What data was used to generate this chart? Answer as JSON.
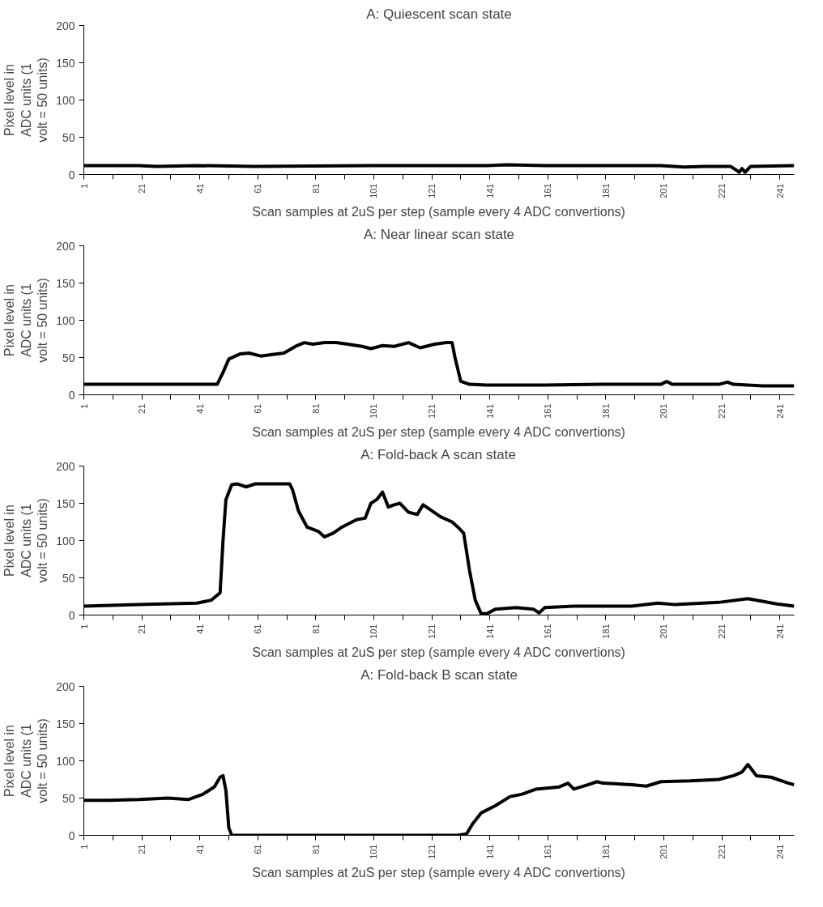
{
  "chart_data": [
    {
      "type": "line",
      "title": "A: Quiescent scan state",
      "xlabel": "Scan samples at 2uS per step (sample every 4 ADC convertions)",
      "ylabel": "Pixel level in ADC units (1 volt = 50 units)",
      "xlim": [
        1,
        246
      ],
      "ylim": [
        0,
        200
      ],
      "yticks": [
        0,
        50,
        100,
        150,
        200
      ],
      "xticks": [
        1,
        {
          "value": 11,
          "label": null
        },
        21,
        {
          "value": 31,
          "label": null
        },
        41,
        {
          "value": 51,
          "label": null
        },
        61,
        {
          "value": 71,
          "label": null
        },
        81,
        {
          "value": 91,
          "label": null
        },
        101,
        {
          "value": 111,
          "label": null
        },
        121,
        {
          "value": 131,
          "label": null
        },
        141,
        {
          "value": 151,
          "label": null
        },
        161,
        {
          "value": 171,
          "label": null
        },
        181,
        {
          "value": 191,
          "label": null
        },
        201,
        {
          "value": 211,
          "label": null
        },
        221,
        {
          "value": 231,
          "label": null
        },
        241
      ],
      "grid": false,
      "marker": "none",
      "line_style": "solid",
      "series": [
        {
          "color": "#000000",
          "x": [
            1,
            20,
            26,
            40,
            60,
            100,
            140,
            147,
            160,
            200,
            208,
            215,
            224,
            226,
            227,
            228,
            229,
            231,
            246
          ],
          "values": [
            12,
            12,
            11,
            12,
            11,
            12,
            12,
            13,
            12,
            12,
            10,
            11,
            11,
            6,
            3,
            8,
            3,
            11,
            12
          ]
        }
      ]
    },
    {
      "type": "line",
      "title": "A: Near linear scan state",
      "xlabel": "Scan samples at 2uS per step (sample every 4 ADC convertions)",
      "ylabel": "Pixel level in ADC units (1 volt = 50 units)",
      "xlim": [
        1,
        246
      ],
      "ylim": [
        0,
        200
      ],
      "yticks": [
        0,
        50,
        100,
        150,
        200
      ],
      "xticks": [
        1,
        {
          "value": 11,
          "label": null
        },
        21,
        {
          "value": 31,
          "label": null
        },
        41,
        {
          "value": 51,
          "label": null
        },
        61,
        {
          "value": 71,
          "label": null
        },
        81,
        {
          "value": 91,
          "label": null
        },
        101,
        {
          "value": 111,
          "label": null
        },
        121,
        {
          "value": 131,
          "label": null
        },
        141,
        {
          "value": 151,
          "label": null
        },
        161,
        {
          "value": 171,
          "label": null
        },
        181,
        {
          "value": 191,
          "label": null
        },
        201,
        {
          "value": 211,
          "label": null
        },
        221,
        {
          "value": 231,
          "label": null
        },
        241
      ],
      "grid": false,
      "marker": "none",
      "line_style": "solid",
      "series": [
        {
          "color": "#000000",
          "x": [
            1,
            20,
            40,
            47,
            49,
            51,
            55,
            58,
            62,
            66,
            70,
            74,
            77,
            80,
            84,
            88,
            92,
            97,
            100,
            104,
            108,
            113,
            117,
            122,
            126,
            128,
            129,
            131,
            134,
            140,
            160,
            180,
            200,
            202,
            204,
            220,
            223,
            225,
            235,
            246
          ],
          "values": [
            14,
            14,
            14,
            14,
            30,
            48,
            55,
            56,
            52,
            54,
            56,
            65,
            70,
            68,
            70,
            70,
            68,
            65,
            62,
            66,
            65,
            70,
            63,
            68,
            70,
            70,
            50,
            18,
            14,
            13,
            13,
            14,
            14,
            18,
            14,
            14,
            17,
            14,
            12,
            12
          ]
        }
      ]
    },
    {
      "type": "line",
      "title": "A: Fold-back A scan state",
      "xlabel": "Scan samples at 2uS per step (sample every 4 ADC convertions)",
      "ylabel": "Pixel level in ADC units (1 volt = 50 units)",
      "xlim": [
        1,
        246
      ],
      "ylim": [
        0,
        200
      ],
      "yticks": [
        0,
        50,
        100,
        150,
        200
      ],
      "xticks": [
        1,
        {
          "value": 11,
          "label": null
        },
        21,
        {
          "value": 31,
          "label": null
        },
        41,
        {
          "value": 51,
          "label": null
        },
        61,
        {
          "value": 71,
          "label": null
        },
        81,
        {
          "value": 91,
          "label": null
        },
        101,
        {
          "value": 111,
          "label": null
        },
        121,
        {
          "value": 131,
          "label": null
        },
        141,
        {
          "value": 151,
          "label": null
        },
        161,
        {
          "value": 171,
          "label": null
        },
        181,
        {
          "value": 191,
          "label": null
        },
        201,
        {
          "value": 211,
          "label": null
        },
        221,
        {
          "value": 231,
          "label": null
        },
        241
      ],
      "grid": false,
      "marker": "none",
      "line_style": "solid",
      "series": [
        {
          "color": "#000000",
          "x": [
            1,
            20,
            40,
            45,
            48,
            49,
            50,
            52,
            54,
            57,
            60,
            66,
            72,
            73,
            75,
            78,
            82,
            84,
            87,
            90,
            95,
            98,
            100,
            102,
            104,
            106,
            108,
            110,
            113,
            116,
            118,
            121,
            124,
            128,
            130,
            132,
            134,
            136,
            138,
            140,
            143,
            150,
            156,
            158,
            160,
            170,
            190,
            199,
            205,
            220,
            230,
            240,
            246
          ],
          "values": [
            12,
            14,
            16,
            20,
            30,
            100,
            155,
            175,
            176,
            172,
            176,
            176,
            176,
            168,
            140,
            118,
            112,
            105,
            110,
            118,
            128,
            130,
            150,
            155,
            165,
            145,
            148,
            150,
            138,
            135,
            148,
            140,
            132,
            125,
            118,
            110,
            60,
            20,
            2,
            2,
            8,
            10,
            8,
            3,
            10,
            12,
            12,
            16,
            14,
            17,
            22,
            15,
            12
          ]
        }
      ]
    },
    {
      "type": "line",
      "title": "A: Fold-back B scan state",
      "xlabel": "Scan samples at 2uS per step (sample every 4 ADC convertions)",
      "ylabel": "Pixel level in ADC units (1 volt = 50 units)",
      "xlim": [
        1,
        246
      ],
      "ylim": [
        0,
        200
      ],
      "yticks": [
        0,
        50,
        100,
        150,
        200
      ],
      "xticks": [
        1,
        {
          "value": 11,
          "label": null
        },
        21,
        {
          "value": 31,
          "label": null
        },
        41,
        {
          "value": 51,
          "label": null
        },
        61,
        {
          "value": 71,
          "label": null
        },
        81,
        {
          "value": 91,
          "label": null
        },
        101,
        {
          "value": 111,
          "label": null
        },
        121,
        {
          "value": 131,
          "label": null
        },
        141,
        {
          "value": 151,
          "label": null
        },
        161,
        {
          "value": 171,
          "label": null
        },
        181,
        {
          "value": 191,
          "label": null
        },
        201,
        {
          "value": 211,
          "label": null
        },
        221,
        {
          "value": 231,
          "label": null
        },
        241
      ],
      "grid": false,
      "marker": "none",
      "line_style": "solid",
      "series": [
        {
          "color": "#000000",
          "x": [
            1,
            10,
            20,
            30,
            37,
            42,
            46,
            48,
            49,
            50,
            51,
            52,
            60,
            100,
            130,
            133,
            135,
            138,
            143,
            148,
            152,
            157,
            165,
            168,
            170,
            175,
            178,
            180,
            190,
            195,
            200,
            210,
            220,
            225,
            228,
            230,
            233,
            238,
            244,
            246
          ],
          "values": [
            47,
            47,
            48,
            50,
            48,
            55,
            65,
            78,
            80,
            60,
            10,
            0,
            0,
            0,
            0,
            2,
            15,
            30,
            40,
            52,
            55,
            62,
            65,
            70,
            62,
            68,
            72,
            70,
            68,
            66,
            72,
            73,
            75,
            80,
            85,
            95,
            80,
            78,
            70,
            68
          ]
        }
      ]
    }
  ]
}
